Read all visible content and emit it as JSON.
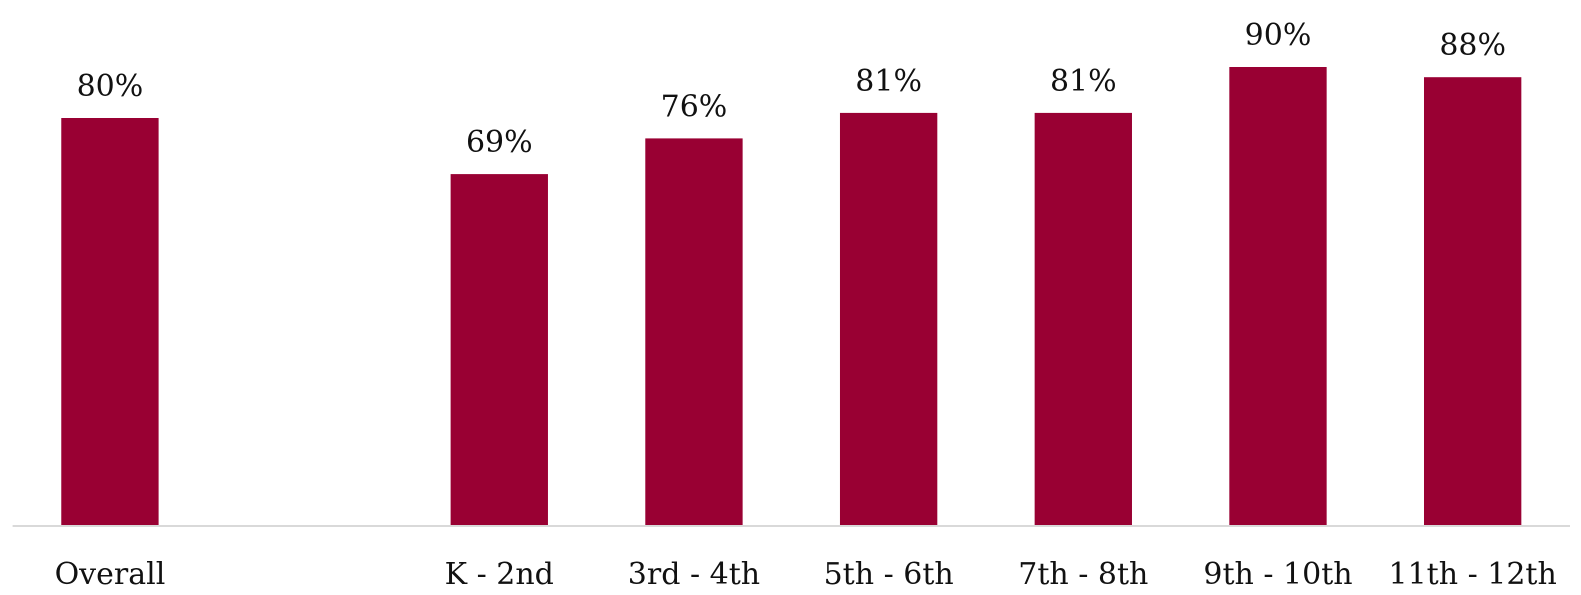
{
  "chart_data": {
    "type": "bar",
    "categories": [
      "Overall",
      null,
      "K - 2nd",
      "3rd - 4th",
      "5th - 6th",
      "7th - 8th",
      "9th - 10th",
      "11th - 12th"
    ],
    "values": [
      80,
      null,
      69,
      76,
      81,
      81,
      90,
      88
    ],
    "value_labels": [
      "80%",
      null,
      "69%",
      "76%",
      "81%",
      "81%",
      "90%",
      "88%"
    ],
    "color": "#990033",
    "ylim": [
      0,
      100
    ]
  }
}
